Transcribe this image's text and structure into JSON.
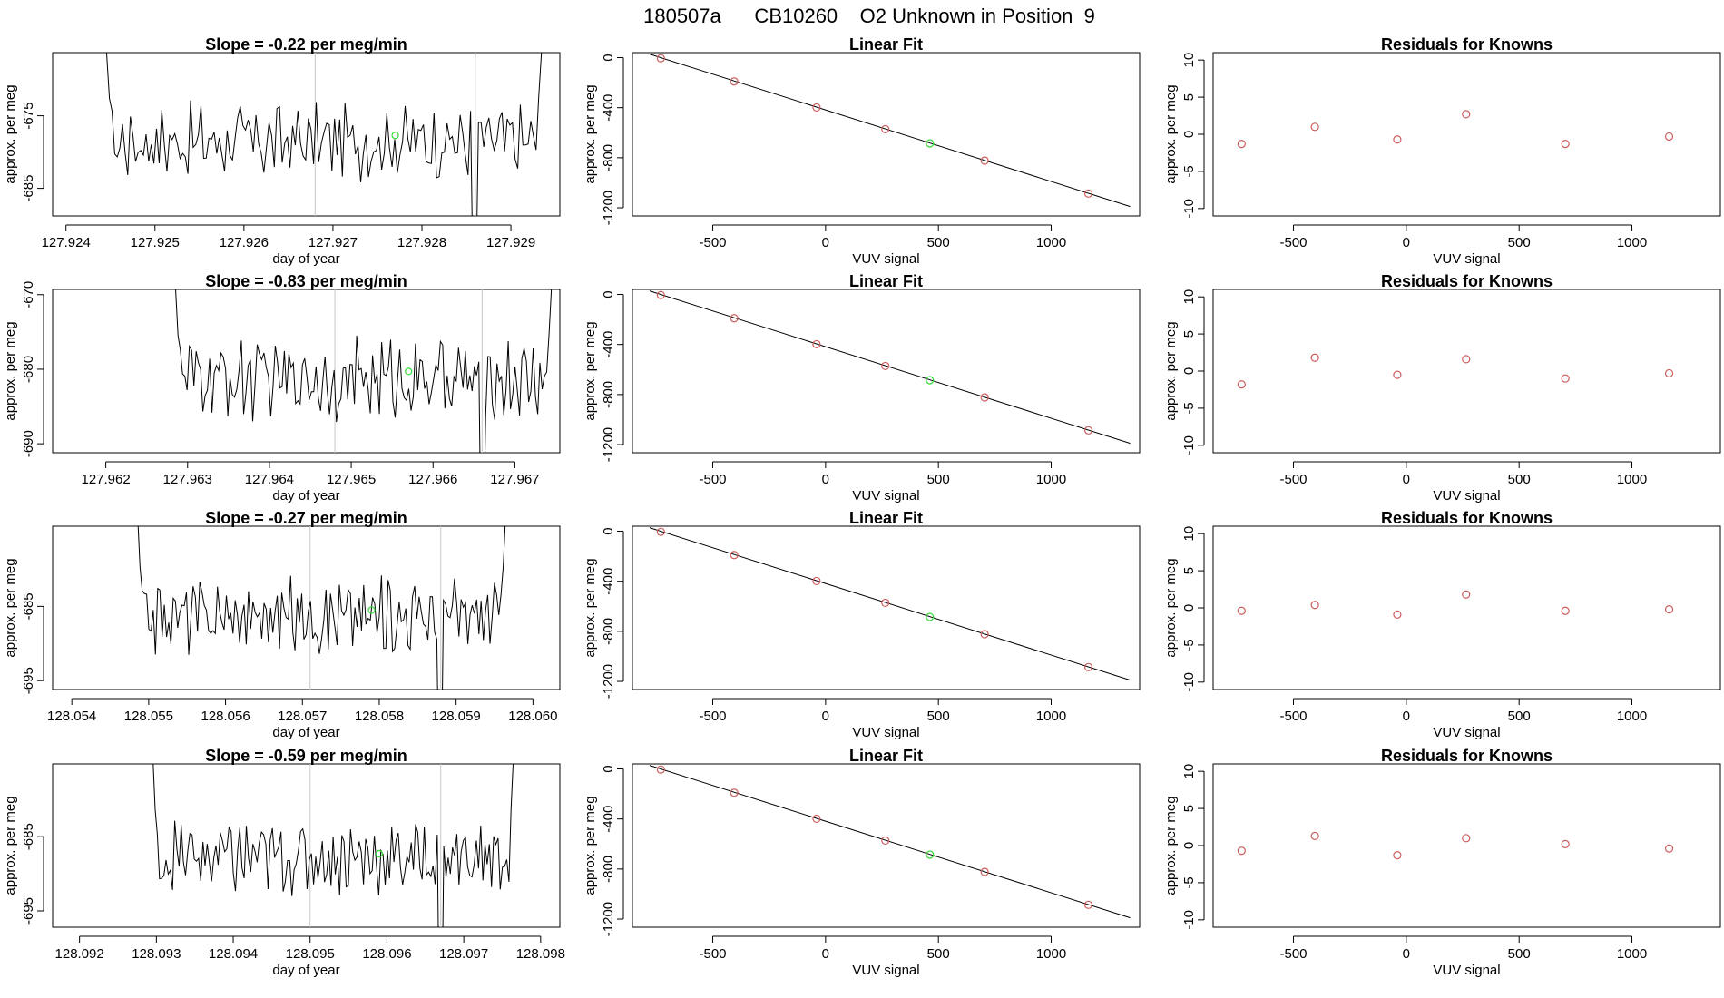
{
  "figure": {
    "title": "180507a      CB10260    O2 Unknown in Position  9"
  },
  "colors": {
    "line": "#000000",
    "known_point": "#cd5c5c",
    "unknown_point": "#33dd33",
    "vline": "#c8c8c8"
  },
  "rows": [
    {
      "time": {
        "title": "Slope =  -0.22  per meg/min",
        "xlabel": "day of year",
        "ylabel": "approx. per meg",
        "xlim": [
          127.92385,
          127.92955
        ],
        "ylim": [
          -688.8,
          -666.3
        ],
        "xticks": [
          "127.924",
          "127.925",
          "127.926",
          "127.927",
          "127.928",
          "127.929"
        ],
        "yticks": [
          "-675",
          "-685"
        ],
        "vlines": [
          127.9268,
          127.9286
        ],
        "marker": [
          127.9277,
          -677.7
        ],
        "start": [
          127.9244,
          -655
        ],
        "end": [
          127.9294,
          -655
        ],
        "level": -678.5,
        "amp": 2.6,
        "dip": [
          127.9286,
          -700
        ]
      },
      "fit": {
        "title": "Linear Fit",
        "xlabel": "VUV signal",
        "ylabel": "approx. per meg",
        "xlim": [
          -856,
          1392
        ],
        "ylim": [
          -1265,
          40
        ],
        "xticks": [
          "-500",
          "0",
          "500",
          "1000"
        ],
        "yticks": [
          "0",
          "-400",
          "-800",
          "-1200"
        ],
        "line_x": [
          -780,
          1350
        ],
        "line_y": [
          28,
          -1190
        ],
        "knowns_x": [
          -730,
          -405,
          -40,
          265,
          705,
          1165
        ],
        "knowns_y": [
          -5,
          -190,
          -398,
          -572,
          -823,
          -1086
        ],
        "unknown": [
          462,
          -685
        ]
      },
      "resid": {
        "title": "Residuals for Knowns",
        "xlabel": "VUV signal",
        "ylabel": "approx. per meg",
        "xlim": [
          -856,
          1392
        ],
        "ylim": [
          -11,
          11
        ],
        "xticks": [
          "-500",
          "0",
          "500",
          "1000"
        ],
        "yticks": [
          "10",
          "5",
          "0",
          "-5",
          "-10"
        ],
        "x": [
          -730,
          -405,
          -40,
          265,
          705,
          1165
        ],
        "y": [
          -1.3,
          1.0,
          -0.7,
          2.7,
          -1.3,
          -0.3
        ]
      }
    },
    {
      "time": {
        "title": "Slope =  -0.83  per meg/min",
        "xlabel": "day of year",
        "ylabel": "approx. per meg",
        "xlim": [
          127.96135,
          127.96755
        ],
        "ylim": [
          -691.2,
          -669.3
        ],
        "xticks": [
          "127.962",
          "127.963",
          "127.964",
          "127.965",
          "127.966",
          "127.967"
        ],
        "yticks": [
          "-670",
          "-680",
          "-690"
        ],
        "vlines": [
          127.9648,
          127.9666
        ],
        "marker": [
          127.9657,
          -680.3
        ],
        "start": [
          127.9628,
          -658
        ],
        "end": [
          127.9675,
          -658
        ],
        "level": -681.3,
        "amp": 2.7,
        "dip": [
          127.9666,
          -705
        ]
      },
      "fit": {
        "title": "Linear Fit",
        "xlabel": "VUV signal",
        "ylabel": "approx. per meg",
        "xlim": [
          -856,
          1392
        ],
        "ylim": [
          -1265,
          40
        ],
        "xticks": [
          "-500",
          "0",
          "500",
          "1000"
        ],
        "yticks": [
          "0",
          "-400",
          "-800",
          "-1200"
        ],
        "line_x": [
          -780,
          1350
        ],
        "line_y": [
          28,
          -1190
        ],
        "knowns_x": [
          -730,
          -405,
          -40,
          265,
          705,
          1165
        ],
        "knowns_y": [
          -5,
          -190,
          -398,
          -572,
          -823,
          -1086
        ],
        "unknown": [
          462,
          -685
        ]
      },
      "resid": {
        "title": "Residuals for Knowns",
        "xlabel": "VUV signal",
        "ylabel": "approx. per meg",
        "xlim": [
          -856,
          1392
        ],
        "ylim": [
          -11,
          11
        ],
        "xticks": [
          "-500",
          "0",
          "500",
          "1000"
        ],
        "yticks": [
          "10",
          "5",
          "0",
          "-5",
          "-10"
        ],
        "x": [
          -730,
          -405,
          -40,
          265,
          705,
          1165
        ],
        "y": [
          -1.8,
          1.8,
          -0.5,
          1.6,
          -1.0,
          -0.3
        ]
      }
    },
    {
      "time": {
        "title": "Slope =  -0.27  per meg/min",
        "xlabel": "day of year",
        "ylabel": "approx. per meg",
        "xlim": [
          128.05375,
          128.06035
        ],
        "ylim": [
          -696.2,
          -674.2
        ],
        "xticks": [
          "128.054",
          "128.055",
          "128.056",
          "128.057",
          "128.058",
          "128.059",
          "128.060"
        ],
        "yticks": [
          "-685",
          "-695"
        ],
        "vlines": [
          128.0571,
          128.0588
        ],
        "marker": [
          128.0579,
          -685.5
        ],
        "start": [
          128.0548,
          -660
        ],
        "end": [
          128.0597,
          -660
        ],
        "level": -686.2,
        "amp": 2.5,
        "dip": [
          128.0588,
          -710
        ]
      },
      "fit": {
        "title": "Linear Fit",
        "xlabel": "VUV signal",
        "ylabel": "approx. per meg",
        "xlim": [
          -856,
          1392
        ],
        "ylim": [
          -1265,
          40
        ],
        "xticks": [
          "-500",
          "0",
          "500",
          "1000"
        ],
        "yticks": [
          "0",
          "-400",
          "-800",
          "-1200"
        ],
        "line_x": [
          -780,
          1350
        ],
        "line_y": [
          28,
          -1190
        ],
        "knowns_x": [
          -730,
          -405,
          -40,
          265,
          705,
          1165
        ],
        "knowns_y": [
          -5,
          -190,
          -398,
          -572,
          -823,
          -1086
        ],
        "unknown": [
          462,
          -685
        ]
      },
      "resid": {
        "title": "Residuals for Knowns",
        "xlabel": "VUV signal",
        "ylabel": "approx. per meg",
        "xlim": [
          -856,
          1392
        ],
        "ylim": [
          -11,
          11
        ],
        "xticks": [
          "-500",
          "0",
          "500",
          "1000"
        ],
        "yticks": [
          "10",
          "5",
          "0",
          "-5",
          "-10"
        ],
        "x": [
          -730,
          -405,
          -40,
          265,
          705,
          1165
        ],
        "y": [
          -0.4,
          0.4,
          -0.9,
          1.8,
          -0.4,
          -0.2
        ]
      }
    },
    {
      "time": {
        "title": "Slope =  -0.59  per meg/min",
        "xlabel": "day of year",
        "ylabel": "approx. per meg",
        "xlim": [
          128.09165,
          128.09825
        ],
        "ylim": [
          -697.2,
          -675.2
        ],
        "xticks": [
          "128.092",
          "128.093",
          "128.094",
          "128.095",
          "128.096",
          "128.097",
          "128.098"
        ],
        "yticks": [
          "-685",
          "-695"
        ],
        "vlines": [
          128.095,
          128.0967
        ],
        "marker": [
          128.0959,
          -687.3
        ],
        "start": [
          128.0929,
          -662
        ],
        "end": [
          128.0977,
          -662
        ],
        "level": -687.8,
        "amp": 2.6,
        "dip": [
          128.0967,
          -712
        ]
      },
      "fit": {
        "title": "Linear Fit",
        "xlabel": "VUV signal",
        "ylabel": "approx. per meg",
        "xlim": [
          -856,
          1392
        ],
        "ylim": [
          -1265,
          40
        ],
        "xticks": [
          "-500",
          "0",
          "500",
          "1000"
        ],
        "yticks": [
          "0",
          "-400",
          "-800",
          "-1200"
        ],
        "line_x": [
          -780,
          1350
        ],
        "line_y": [
          28,
          -1190
        ],
        "knowns_x": [
          -730,
          -405,
          -40,
          265,
          705,
          1165
        ],
        "knowns_y": [
          -5,
          -190,
          -398,
          -572,
          -823,
          -1086
        ],
        "unknown": [
          462,
          -685
        ]
      },
      "resid": {
        "title": "Residuals for Knowns",
        "xlabel": "VUV signal",
        "ylabel": "approx. per meg",
        "xlim": [
          -856,
          1392
        ],
        "ylim": [
          -11,
          11
        ],
        "xticks": [
          "-500",
          "0",
          "500",
          "1000"
        ],
        "yticks": [
          "10",
          "5",
          "0",
          "-5",
          "-10"
        ],
        "x": [
          -730,
          -405,
          -40,
          265,
          705,
          1165
        ],
        "y": [
          -0.7,
          1.3,
          -1.3,
          1.0,
          0.2,
          -0.4
        ]
      }
    }
  ],
  "chart_data": [
    {
      "type": "line",
      "title": "Slope =  -0.22  per meg/min",
      "xlabel": "day of year",
      "ylabel": "approx. per meg",
      "xlim": [
        127.92385,
        127.92955
      ],
      "ylim": [
        -688.8,
        -666.3
      ]
    },
    {
      "type": "line",
      "title": "Linear Fit",
      "xlabel": "VUV signal",
      "ylabel": "approx. per meg",
      "knowns_x": [
        -730,
        -405,
        -40,
        265,
        705,
        1165
      ],
      "knowns_y": [
        -5,
        -190,
        -398,
        -572,
        -823,
        -1086
      ]
    },
    {
      "type": "scatter",
      "title": "Residuals for Knowns",
      "xlabel": "VUV signal",
      "ylabel": "approx. per meg",
      "x": [
        -730,
        -405,
        -40,
        265,
        705,
        1165
      ],
      "y": [
        -1.3,
        1.0,
        -0.7,
        2.7,
        -1.3,
        -0.3
      ]
    },
    {
      "type": "line",
      "title": "Slope =  -0.83  per meg/min",
      "xlabel": "day of year",
      "ylabel": "approx. per meg",
      "xlim": [
        127.96135,
        127.96755
      ],
      "ylim": [
        -691.2,
        -669.3
      ]
    },
    {
      "type": "line",
      "title": "Linear Fit",
      "xlabel": "VUV signal",
      "ylabel": "approx. per meg"
    },
    {
      "type": "scatter",
      "title": "Residuals for Knowns",
      "xlabel": "VUV signal",
      "ylabel": "approx. per meg",
      "x": [
        -730,
        -405,
        -40,
        265,
        705,
        1165
      ],
      "y": [
        -1.8,
        1.8,
        -0.5,
        1.6,
        -1.0,
        -0.3
      ]
    },
    {
      "type": "line",
      "title": "Slope =  -0.27  per meg/min",
      "xlabel": "day of year",
      "ylabel": "approx. per meg",
      "xlim": [
        128.05375,
        128.06035
      ],
      "ylim": [
        -696.2,
        -674.2
      ]
    },
    {
      "type": "line",
      "title": "Linear Fit",
      "xlabel": "VUV signal",
      "ylabel": "approx. per meg"
    },
    {
      "type": "scatter",
      "title": "Residuals for Knowns",
      "xlabel": "VUV signal",
      "ylabel": "approx. per meg",
      "x": [
        -730,
        -405,
        -40,
        265,
        705,
        1165
      ],
      "y": [
        -0.4,
        0.4,
        -0.9,
        1.8,
        -0.4,
        -0.2
      ]
    },
    {
      "type": "line",
      "title": "Slope =  -0.59  per meg/min",
      "xlabel": "day of year",
      "ylabel": "approx. per meg",
      "xlim": [
        128.09165,
        128.09825
      ],
      "ylim": [
        -697.2,
        -675.2
      ]
    },
    {
      "type": "line",
      "title": "Linear Fit",
      "xlabel": "VUV signal",
      "ylabel": "approx. per meg"
    },
    {
      "type": "scatter",
      "title": "Residuals for Knowns",
      "xlabel": "VUV signal",
      "ylabel": "approx. per meg",
      "x": [
        -730,
        -405,
        -40,
        265,
        705,
        1165
      ],
      "y": [
        -0.7,
        1.3,
        -1.3,
        1.0,
        0.2,
        -0.4
      ]
    }
  ]
}
